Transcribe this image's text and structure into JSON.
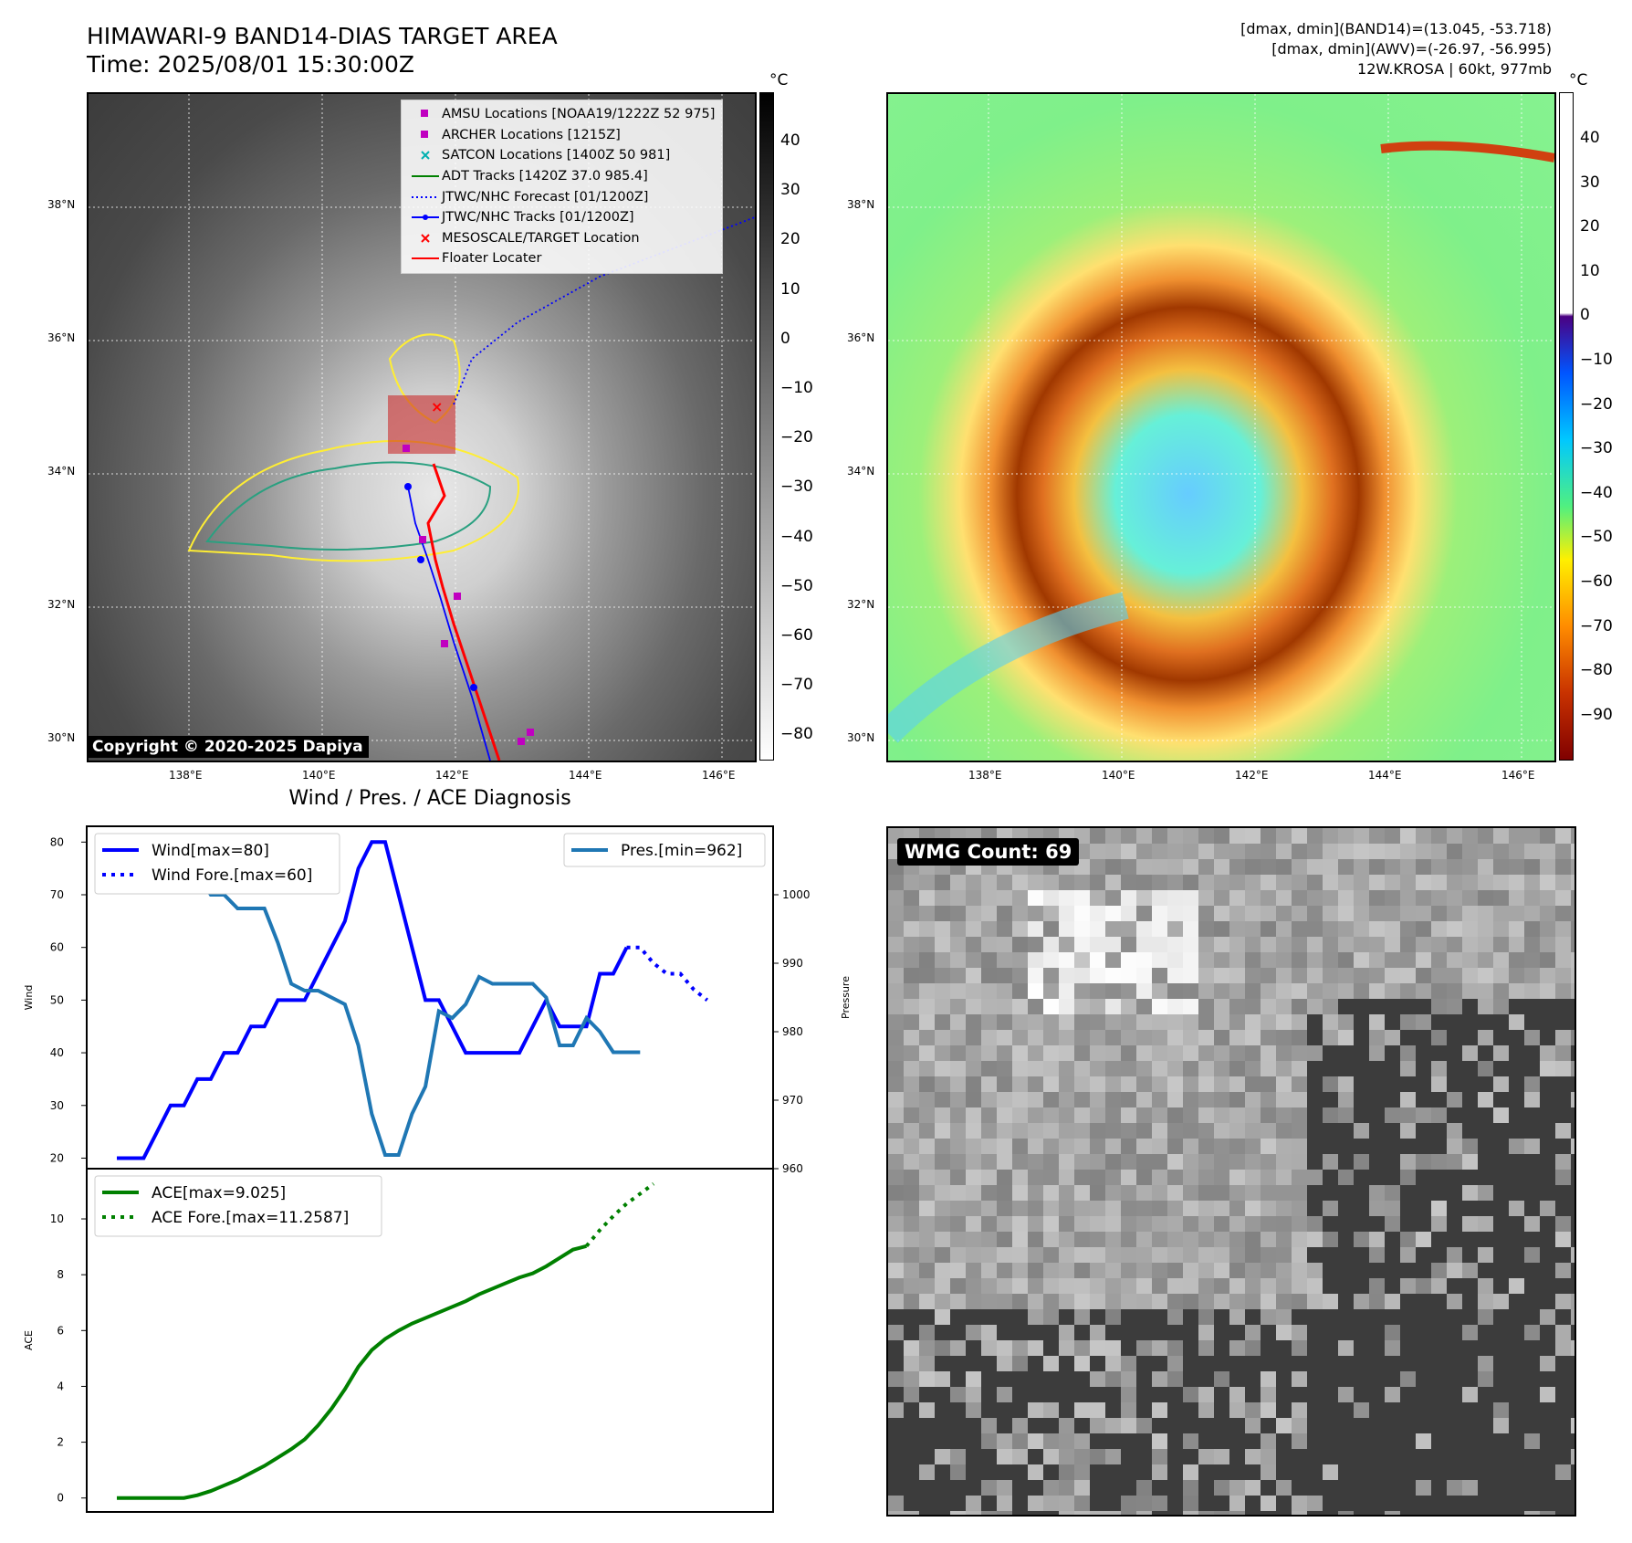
{
  "header": {
    "title_line1": "HIMAWARI-9 BAND14-DIAS TARGET AREA",
    "title_line2": "Time: 2025/08/01 15:30:00Z",
    "info_line1": "[dmax, dmin](BAND14)=(13.045, -53.718)",
    "info_line2": "[dmax, dmin](AWV)=(-26.97, -56.995)",
    "info_line3": "12W.KROSA | 60kt, 977mb"
  },
  "map_axes": {
    "lat_labels": [
      "38°N",
      "36°N",
      "34°N",
      "32°N",
      "30°N"
    ],
    "lon_labels": [
      "138°E",
      "140°E",
      "142°E",
      "144°E",
      "146°E"
    ]
  },
  "colorbar1": {
    "unit": "°C",
    "ticks": [
      "40",
      "30",
      "20",
      "10",
      "0",
      "−10",
      "−20",
      "−30",
      "−40",
      "−50",
      "−60",
      "−70",
      "−80"
    ]
  },
  "colorbar2": {
    "unit": "°C",
    "ticks": [
      "40",
      "30",
      "20",
      "10",
      "0",
      "−10",
      "−20",
      "−30",
      "−40",
      "−50",
      "−60",
      "−70",
      "−80",
      "−90"
    ]
  },
  "legend": {
    "items": [
      {
        "label": "AMSU Locations [NOAA19/1222Z 52 975]",
        "symbol": "square",
        "color": "#c000c0"
      },
      {
        "label": "ARCHER Locations [1215Z]",
        "symbol": "square",
        "color": "#c000c0"
      },
      {
        "label": "SATCON Locations [1400Z 50 981]",
        "symbol": "x",
        "color": "#00b0b0"
      },
      {
        "label": "ADT Tracks [1420Z 37.0 985.4]",
        "symbol": "line",
        "color": "#008000"
      },
      {
        "label": "JTWC/NHC Forecast [01/1200Z]",
        "symbol": "dotted",
        "color": "#0000ff"
      },
      {
        "label": "JTWC/NHC Tracks [01/1200Z]",
        "symbol": "line-dot",
        "color": "#0000ff"
      },
      {
        "label": "MESOSCALE/TARGET Location",
        "symbol": "x",
        "color": "#ff0000"
      },
      {
        "label": "Floater Locater",
        "symbol": "line",
        "color": "#ff0000"
      }
    ]
  },
  "copyright": "Copyright © 2020-2025 Dapiya",
  "wmg_label": "WMG Count: 69",
  "diag_title": "Wind / Pres. / ACE Diagnosis",
  "chart_data": [
    {
      "type": "line",
      "ylabel": "Wind",
      "y2label": "Pressure",
      "ylim": [
        18,
        83
      ],
      "y2lim": [
        960,
        1010
      ],
      "yticks": [
        20,
        30,
        40,
        50,
        60,
        70,
        80
      ],
      "y2ticks": [
        960,
        970,
        980,
        990,
        1000
      ],
      "legend_left": [
        "Wind[max=80]",
        "Wind Fore.[max=60]"
      ],
      "legend_right": [
        "Pres.[min=962]"
      ],
      "series": [
        {
          "name": "Wind[max=80]",
          "axis": "left",
          "color": "#0000ff",
          "style": "solid",
          "values": [
            20,
            20,
            20,
            25,
            30,
            30,
            35,
            35,
            40,
            40,
            45,
            45,
            50,
            50,
            50,
            55,
            60,
            65,
            75,
            80,
            80,
            70,
            60,
            50,
            50,
            45,
            40,
            40,
            40,
            40,
            40,
            45,
            50,
            45,
            45,
            45,
            55,
            55,
            60
          ]
        },
        {
          "name": "Wind Fore.[max=60]",
          "axis": "left",
          "color": "#0000ff",
          "style": "dotted",
          "offset": 38,
          "values": [
            60,
            60,
            57,
            55,
            55,
            52,
            50
          ]
        },
        {
          "name": "Pres.[min=962]",
          "axis": "right",
          "color": "#1f77b4",
          "style": "solid",
          "values": [
            1008,
            1008,
            1008,
            1005,
            1005,
            1003,
            1003,
            1000,
            1000,
            998,
            998,
            998,
            993,
            987,
            986,
            986,
            985,
            984,
            978,
            968,
            962,
            962,
            968,
            972,
            983,
            982,
            984,
            988,
            987,
            987,
            987,
            987,
            985,
            978,
            978,
            982,
            980,
            977,
            977,
            977
          ]
        }
      ]
    },
    {
      "type": "line",
      "ylabel": "ACE",
      "ylim": [
        -0.5,
        11.8
      ],
      "yticks": [
        0,
        2,
        4,
        6,
        8,
        10
      ],
      "legend": [
        "ACE[max=9.025]",
        "ACE Fore.[max=11.2587]"
      ],
      "series": [
        {
          "name": "ACE[max=9.025]",
          "color": "#008000",
          "style": "solid",
          "values": [
            0,
            0,
            0,
            0,
            0,
            0,
            0.1,
            0.25,
            0.45,
            0.65,
            0.9,
            1.15,
            1.45,
            1.75,
            2.1,
            2.6,
            3.2,
            3.9,
            4.7,
            5.3,
            5.7,
            6.0,
            6.25,
            6.45,
            6.65,
            6.85,
            7.05,
            7.3,
            7.5,
            7.7,
            7.9,
            8.05,
            8.3,
            8.6,
            8.9,
            9.025
          ]
        },
        {
          "name": "ACE Fore.[max=11.2587]",
          "color": "#008000",
          "style": "dotted",
          "offset": 35,
          "values": [
            9.025,
            9.6,
            10.1,
            10.55,
            10.9,
            11.2587
          ]
        }
      ]
    }
  ]
}
